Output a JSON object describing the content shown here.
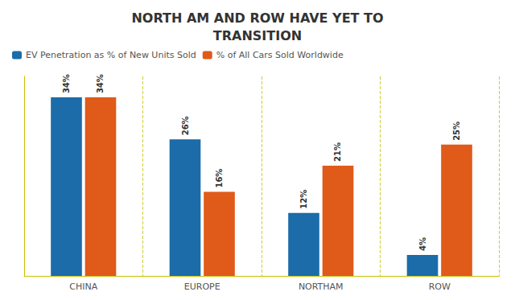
{
  "chart_data": {
    "type": "bar",
    "title": "NORTH AM AND ROW HAVE YET TO\nTRANSITION",
    "categories": [
      "CHINA",
      "EUROPE",
      "NORTHAM",
      "ROW"
    ],
    "series": [
      {
        "name": "EV Penetration as % of New Units Sold",
        "color": "#1b6ca8",
        "values": [
          34,
          26,
          12,
          4
        ],
        "value_labels": [
          "34%",
          "26%",
          "12%",
          "4%"
        ]
      },
      {
        "name": "% of All Cars Sold Worldwide",
        "color": "#e05a1a",
        "values": [
          34,
          16,
          21,
          25
        ],
        "value_labels": [
          "34%",
          "16%",
          "21%",
          "25%"
        ]
      }
    ],
    "ylim": [
      0,
      38
    ],
    "tick_labels": "x",
    "data_labels": true,
    "legend": "upper left"
  }
}
